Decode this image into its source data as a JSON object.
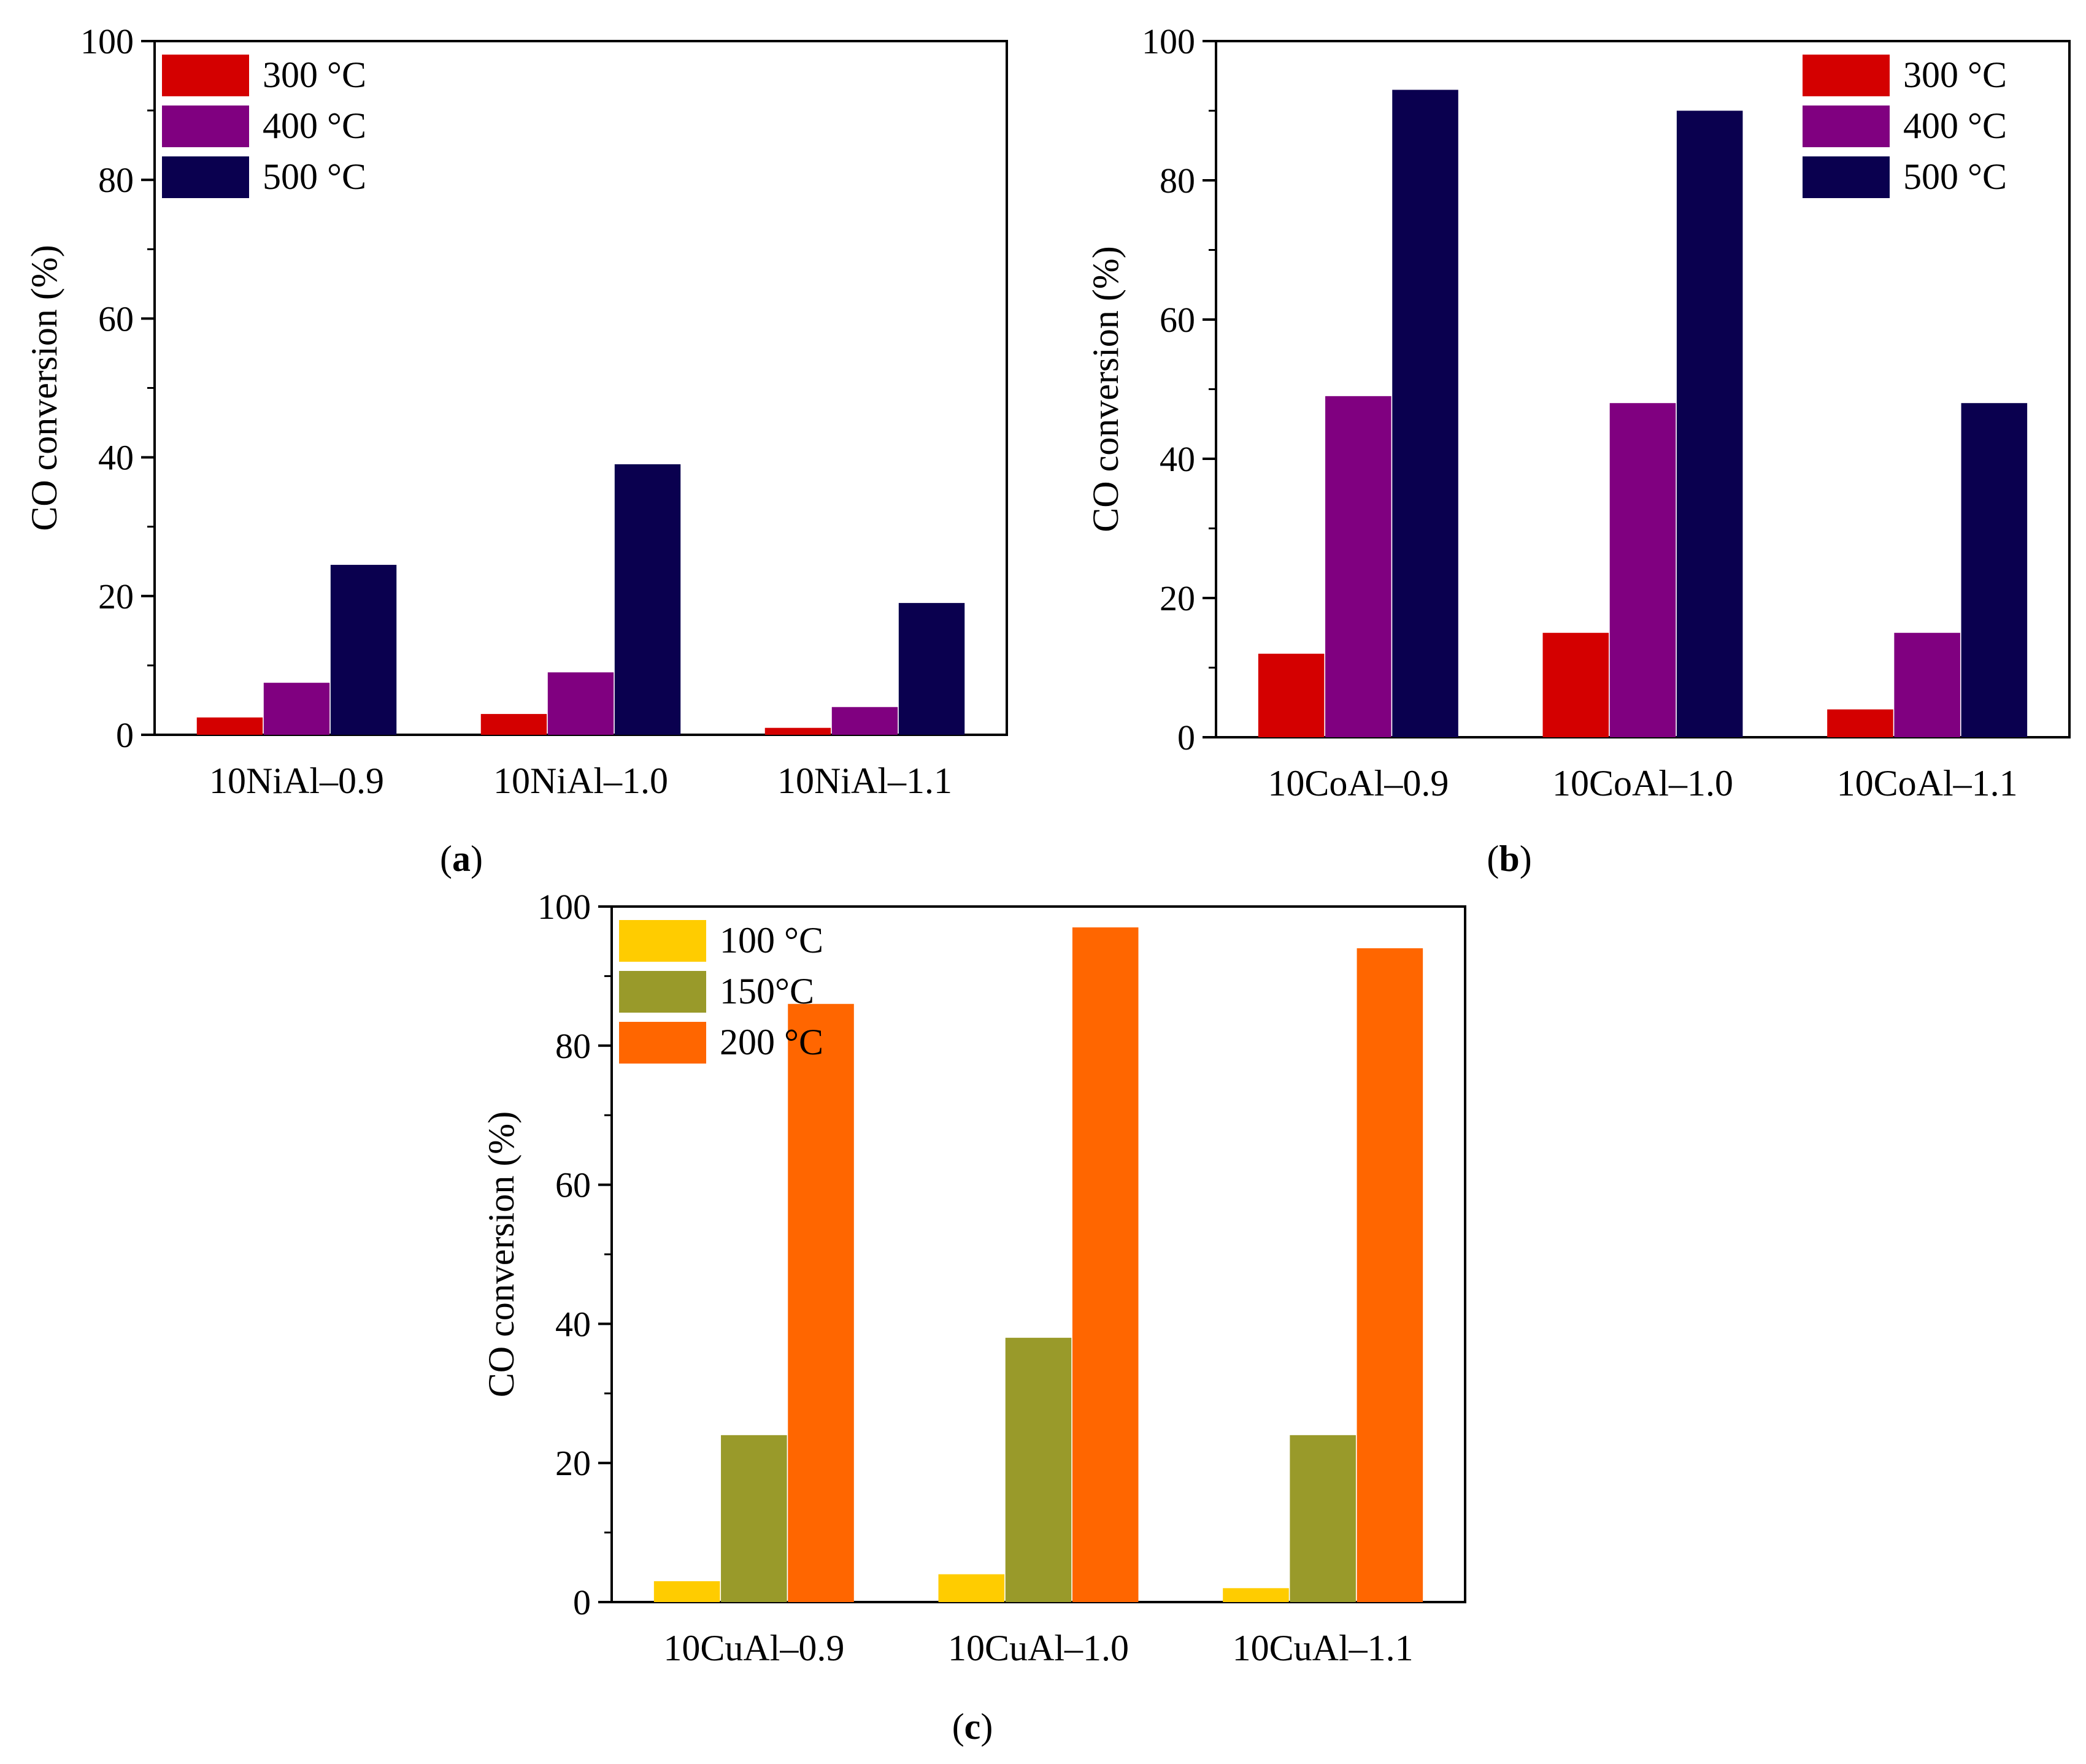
{
  "chart_data": [
    {
      "type": "bar",
      "panel_label": "a",
      "categories": [
        "10NiAl–0.9",
        "10NiAl–1.0",
        "10NiAl–1.1"
      ],
      "series": [
        {
          "name": "300 °C",
          "color": "#d40000",
          "values": [
            2.5,
            3.0,
            1.0
          ]
        },
        {
          "name": "400 °C",
          "color": "#800080",
          "values": [
            7.5,
            9.0,
            4.0
          ]
        },
        {
          "name": "500 °C",
          "color": "#0a004f",
          "values": [
            24.5,
            39.0,
            19.0
          ]
        }
      ],
      "ylabel": "CO conversion (%)",
      "xlabel": "",
      "ylim": [
        0,
        100
      ],
      "yticks": [
        0,
        20,
        40,
        60,
        80,
        100
      ],
      "legend_position": "top-left",
      "grid": false
    },
    {
      "type": "bar",
      "panel_label": "b",
      "categories": [
        "10CoAl–0.9",
        "10CoAl–1.0",
        "10CoAl–1.1"
      ],
      "series": [
        {
          "name": "300 °C",
          "color": "#d40000",
          "values": [
            12.0,
            15.0,
            4.0
          ]
        },
        {
          "name": "400 °C",
          "color": "#800080",
          "values": [
            49.0,
            48.0,
            15.0
          ]
        },
        {
          "name": "500 °C",
          "color": "#0a004f",
          "values": [
            93.0,
            90.0,
            48.0
          ]
        }
      ],
      "ylabel": "CO conversion (%)",
      "xlabel": "",
      "ylim": [
        0,
        100
      ],
      "yticks": [
        0,
        20,
        40,
        60,
        80,
        100
      ],
      "legend_position": "top-right",
      "grid": false
    },
    {
      "type": "bar",
      "panel_label": "c",
      "categories": [
        "10CuAl–0.9",
        "10CuAl–1.0",
        "10CuAl–1.1"
      ],
      "series": [
        {
          "name": "100 °C",
          "color": "#ffcc00",
          "values": [
            3.0,
            4.0,
            2.0
          ]
        },
        {
          "name": "150°C",
          "color": "#999a2a",
          "values": [
            24.0,
            38.0,
            24.0
          ]
        },
        {
          "name": "200 °C",
          "color": "#ff6600",
          "values": [
            86.0,
            97.0,
            94.0
          ]
        }
      ],
      "ylabel": "CO conversion (%)",
      "xlabel": "",
      "ylim": [
        0,
        100
      ],
      "yticks": [
        0,
        20,
        40,
        60,
        80,
        100
      ],
      "legend_position": "top-left",
      "grid": false
    }
  ]
}
